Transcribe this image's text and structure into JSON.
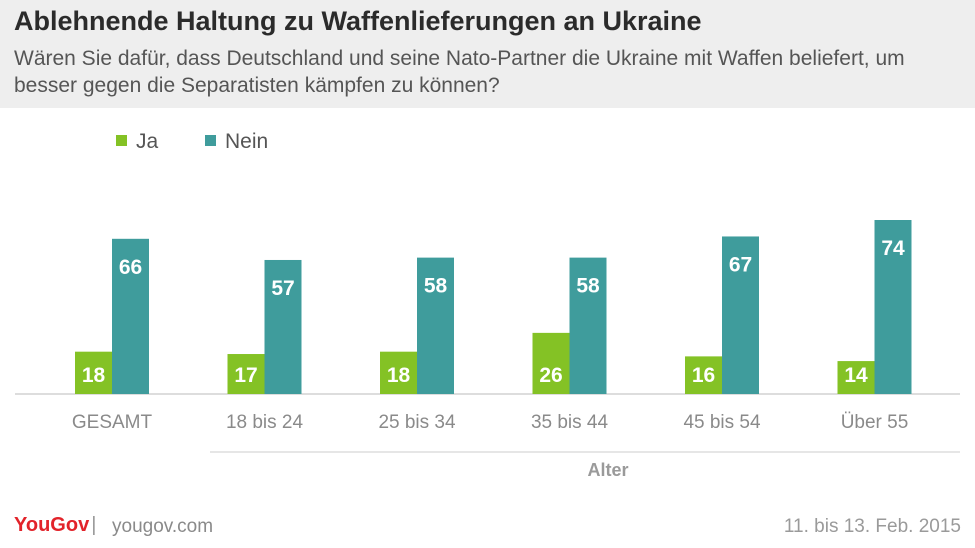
{
  "header": {
    "title": "Ablehnende Haltung zu Waffenlieferungen an Ukraine",
    "subtitle": "Wären Sie dafür, dass Deutschland und seine Nato-Partner die Ukraine mit Waffen beliefert, um besser gegen die Separatisten kämpfen zu können?"
  },
  "footer": {
    "logo": "YouGov",
    "url": "yougov.com",
    "date": "11. bis 13. Feb. 2015"
  },
  "colors": {
    "ja": "#84c225",
    "nein": "#3f9c9c",
    "header_bg": "#eeeeee",
    "logo": "#e2232a"
  },
  "chart_data": {
    "type": "bar",
    "title": "Ablehnende Haltung zu Waffenlieferungen an Ukraine",
    "categories": [
      "GESAMT",
      "18 bis 24",
      "25 bis 34",
      "35 bis 44",
      "45 bis 54",
      "Über 55"
    ],
    "group_label": "Alter",
    "series": [
      {
        "name": "Ja",
        "color": "#84c225",
        "values": [
          18,
          17,
          18,
          26,
          16,
          14
        ]
      },
      {
        "name": "Nein",
        "color": "#3f9c9c",
        "values": [
          66,
          57,
          58,
          58,
          67,
          74
        ]
      }
    ],
    "ylim": [
      0,
      80
    ],
    "grid": false,
    "legend": "top-left",
    "data_labels": true
  }
}
